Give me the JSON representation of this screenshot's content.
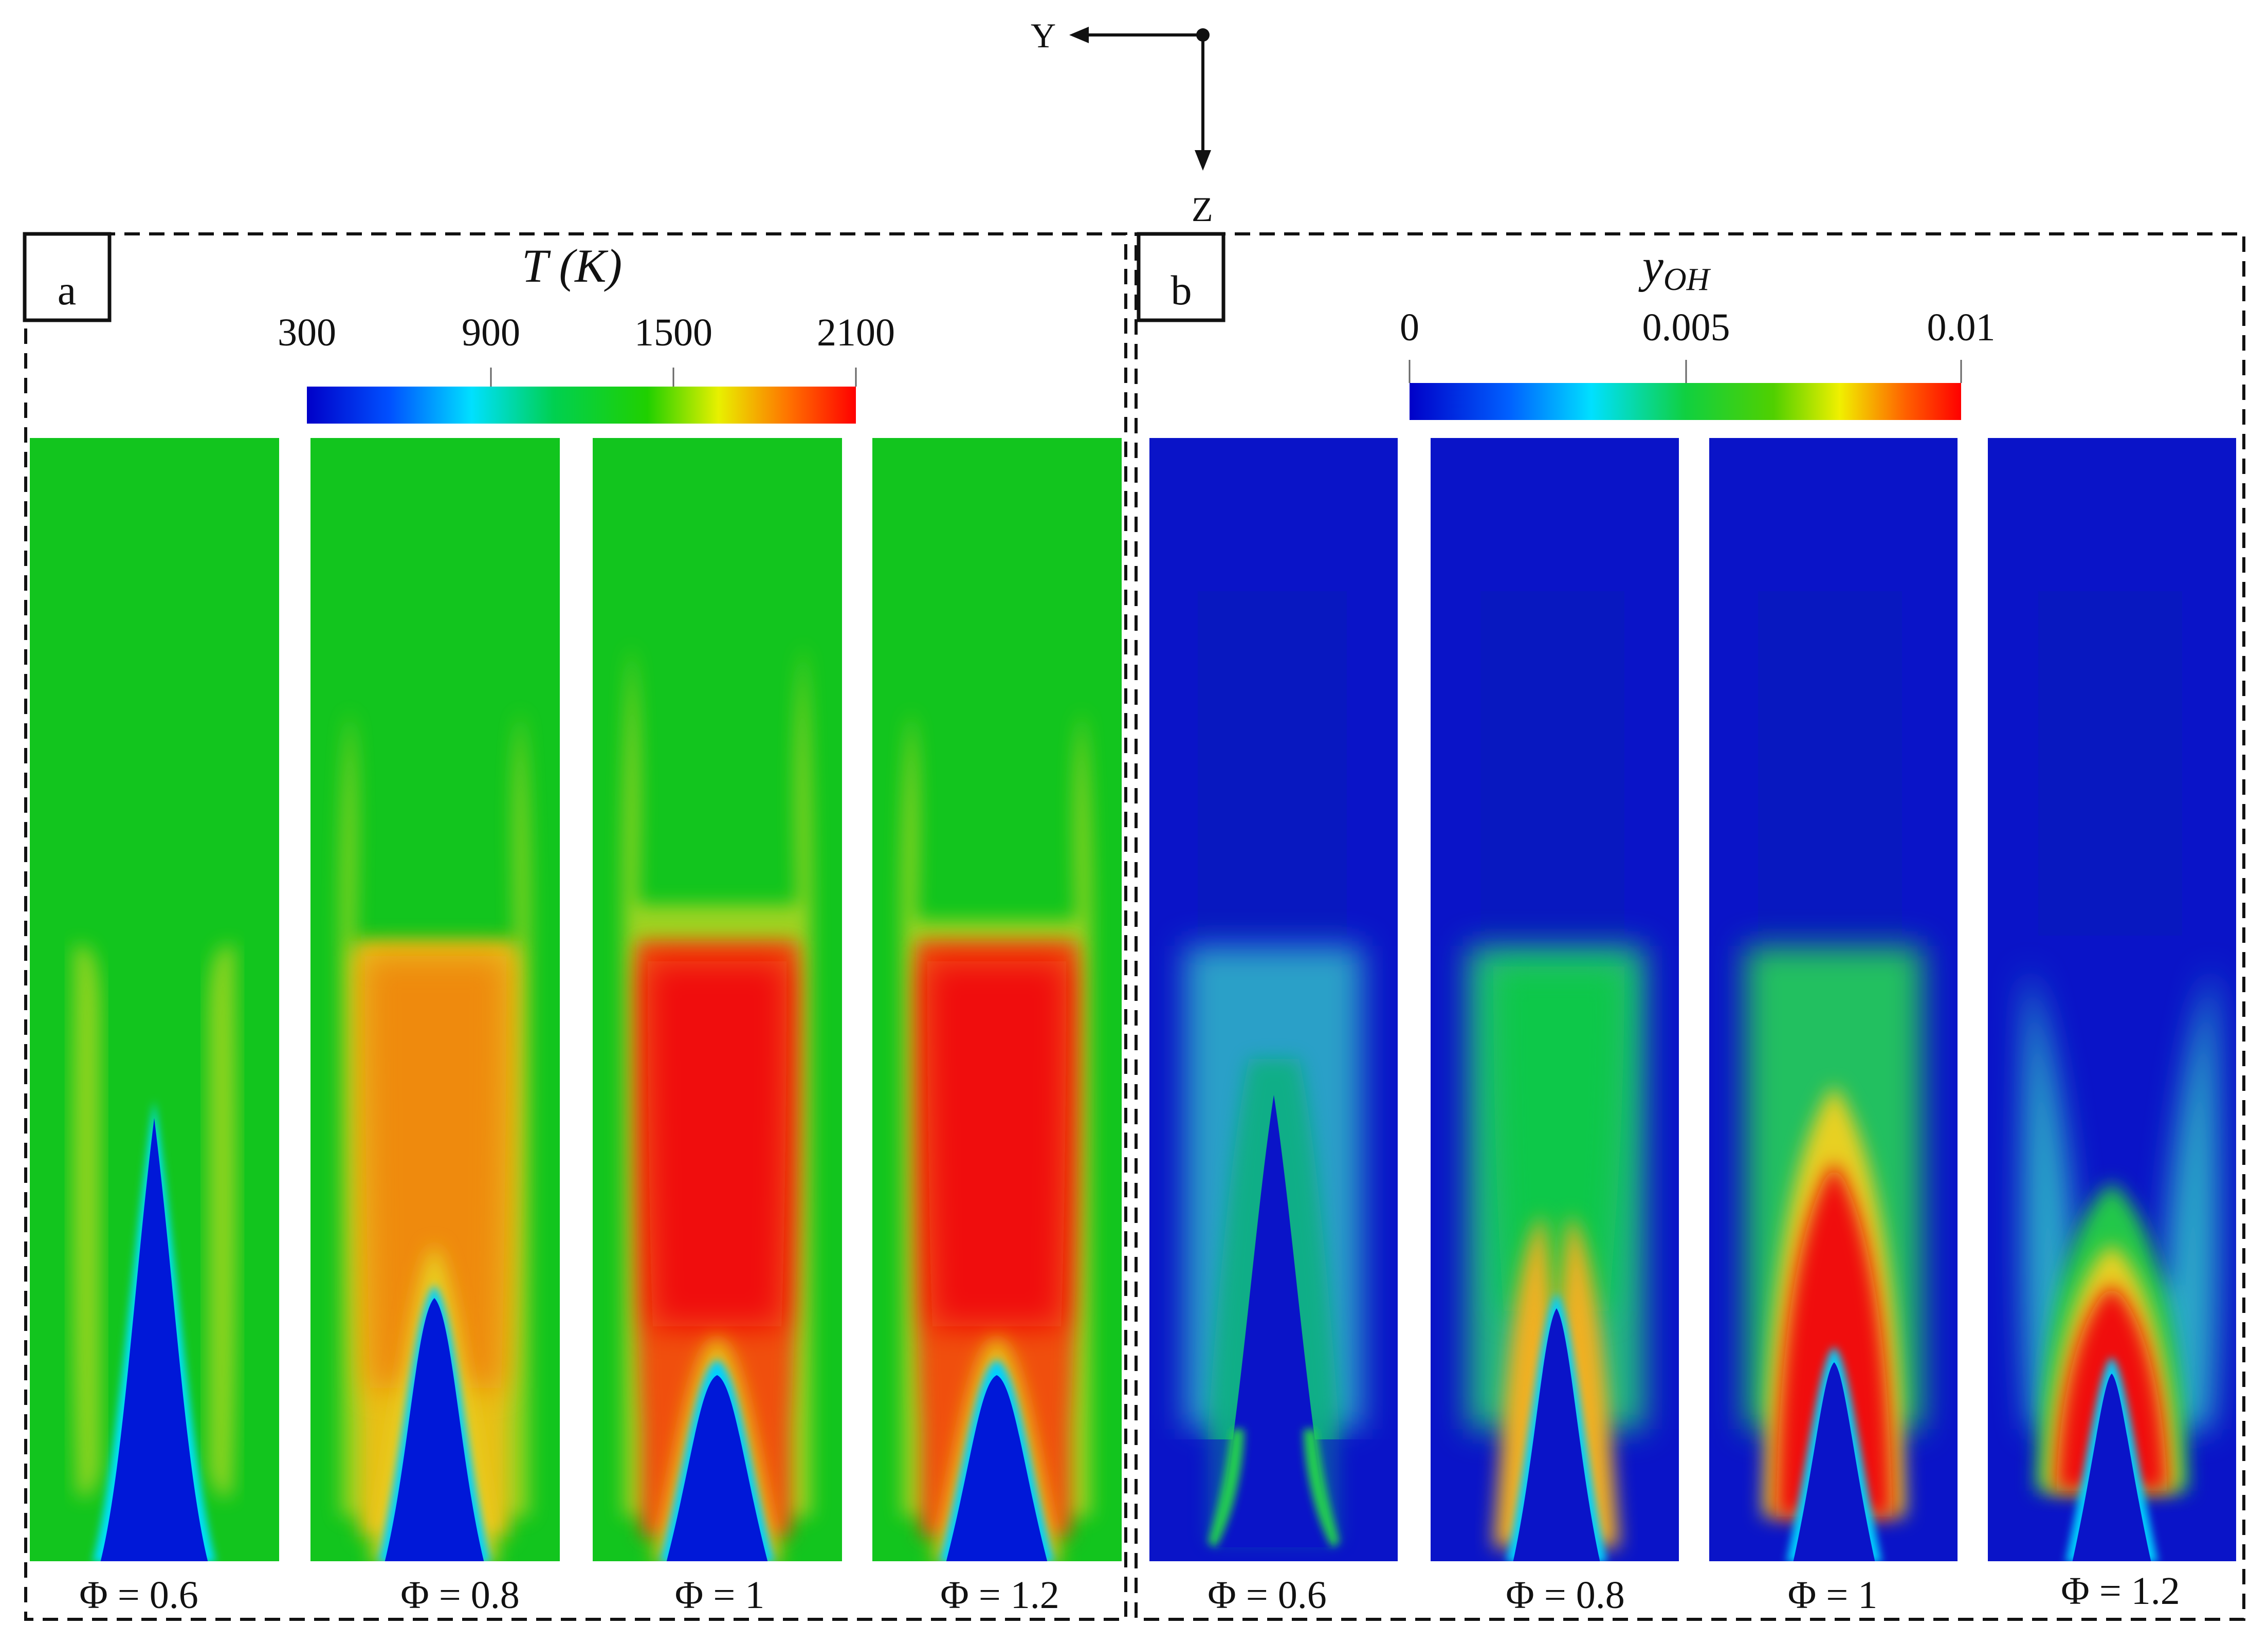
{
  "axes": {
    "y_label": "Y",
    "z_label": "Z"
  },
  "panel_a": {
    "tag": "a",
    "colorbar": {
      "variable": "T",
      "unit": "K",
      "ticks": [
        "300",
        "900",
        "1500",
        "2100"
      ],
      "min": 300,
      "max": 2100
    },
    "cases": [
      {
        "label": "Φ = 0.6"
      },
      {
        "label": "Φ = 0.8"
      },
      {
        "label": "Φ = 1"
      },
      {
        "label": "Φ = 1.2"
      }
    ]
  },
  "panel_b": {
    "tag": "b",
    "colorbar": {
      "variable": "y",
      "subscript": "OH",
      "ticks": [
        "0",
        "0.005",
        "0.01"
      ],
      "min": 0,
      "max": 0.01
    },
    "cases": [
      {
        "label": "Φ = 0.6"
      },
      {
        "label": "Φ = 0.8"
      },
      {
        "label": "Φ = 1"
      },
      {
        "label": "Φ = 1.2"
      }
    ]
  }
}
